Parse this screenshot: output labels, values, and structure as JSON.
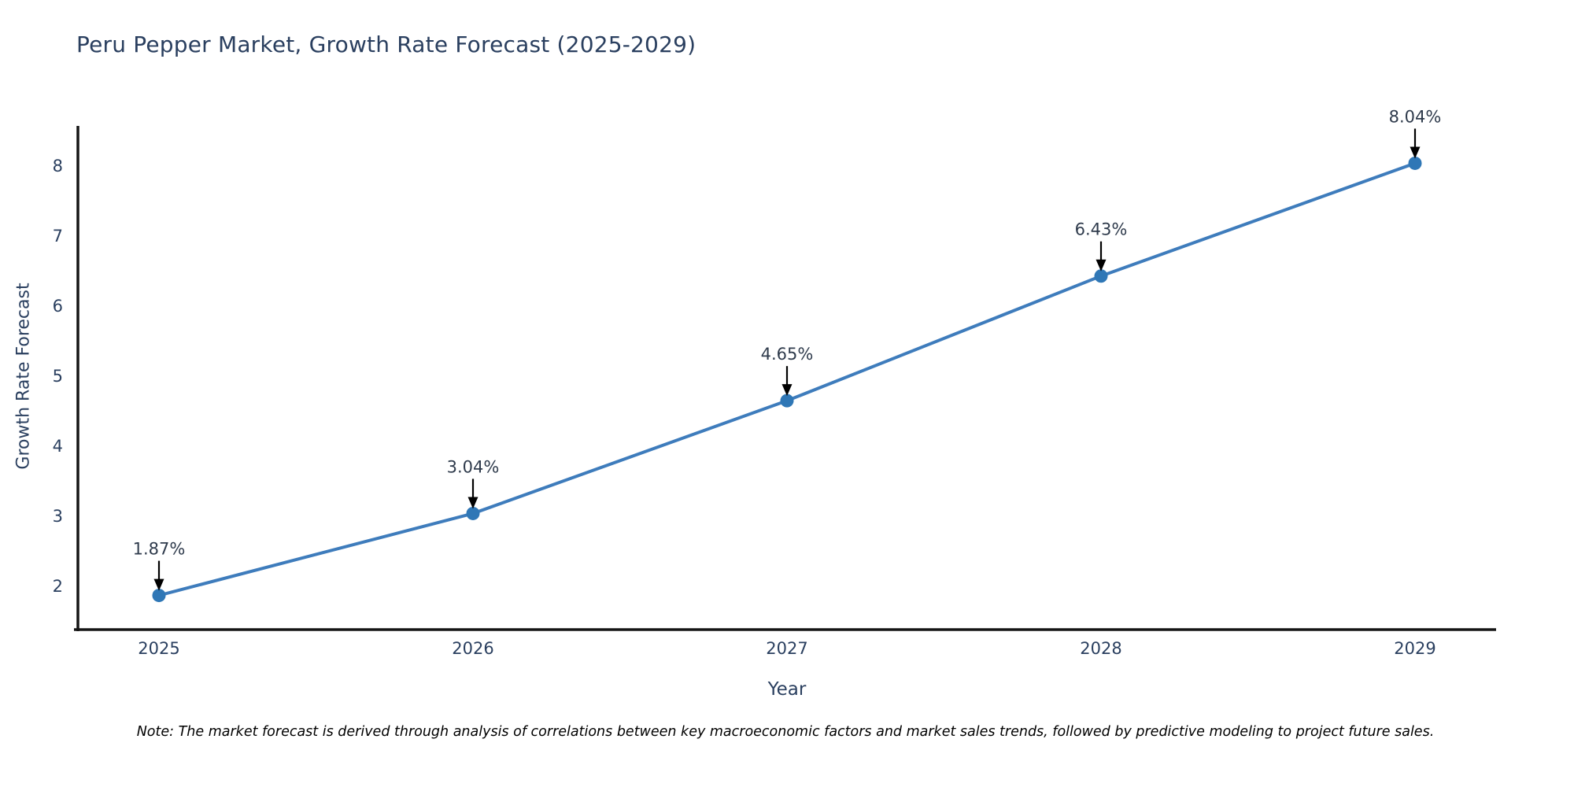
{
  "note": "Note: The market forecast is derived through analysis of correlations between key macroeconomic factors and market sales trends, followed by predictive modeling to project future sales.",
  "colors": {
    "line": "#3e7cbc",
    "marker": "#2f77b6",
    "axis": "#151515",
    "tick_text": "#2a3f5f",
    "annotation_text": "#2f3b4c",
    "arrow": "#000000",
    "title_text": "#2a3f5f",
    "background": "#ffffff"
  },
  "chart_data": {
    "type": "line",
    "title": "Peru Pepper Market, Growth Rate Forecast (2025-2029)",
    "xlabel": "Year",
    "ylabel": "Growth Rate Forecast",
    "x": [
      2025,
      2026,
      2027,
      2028,
      2029
    ],
    "values": [
      1.87,
      3.04,
      4.65,
      6.43,
      8.04
    ],
    "point_labels": [
      "1.87%",
      "3.04%",
      "4.65%",
      "6.43%",
      "8.04%"
    ],
    "xticklabels": [
      "2025",
      "2026",
      "2027",
      "2028",
      "2029"
    ],
    "yticks": [
      2,
      3,
      4,
      5,
      6,
      7,
      8
    ],
    "yticklabels": [
      "2",
      "3",
      "4",
      "5",
      "6",
      "7",
      "8"
    ],
    "xlim": [
      2024.73,
      2029.26
    ],
    "ylim": [
      1.38,
      8.57
    ],
    "grid": false,
    "legend": "none",
    "annotations_arrows": true
  }
}
